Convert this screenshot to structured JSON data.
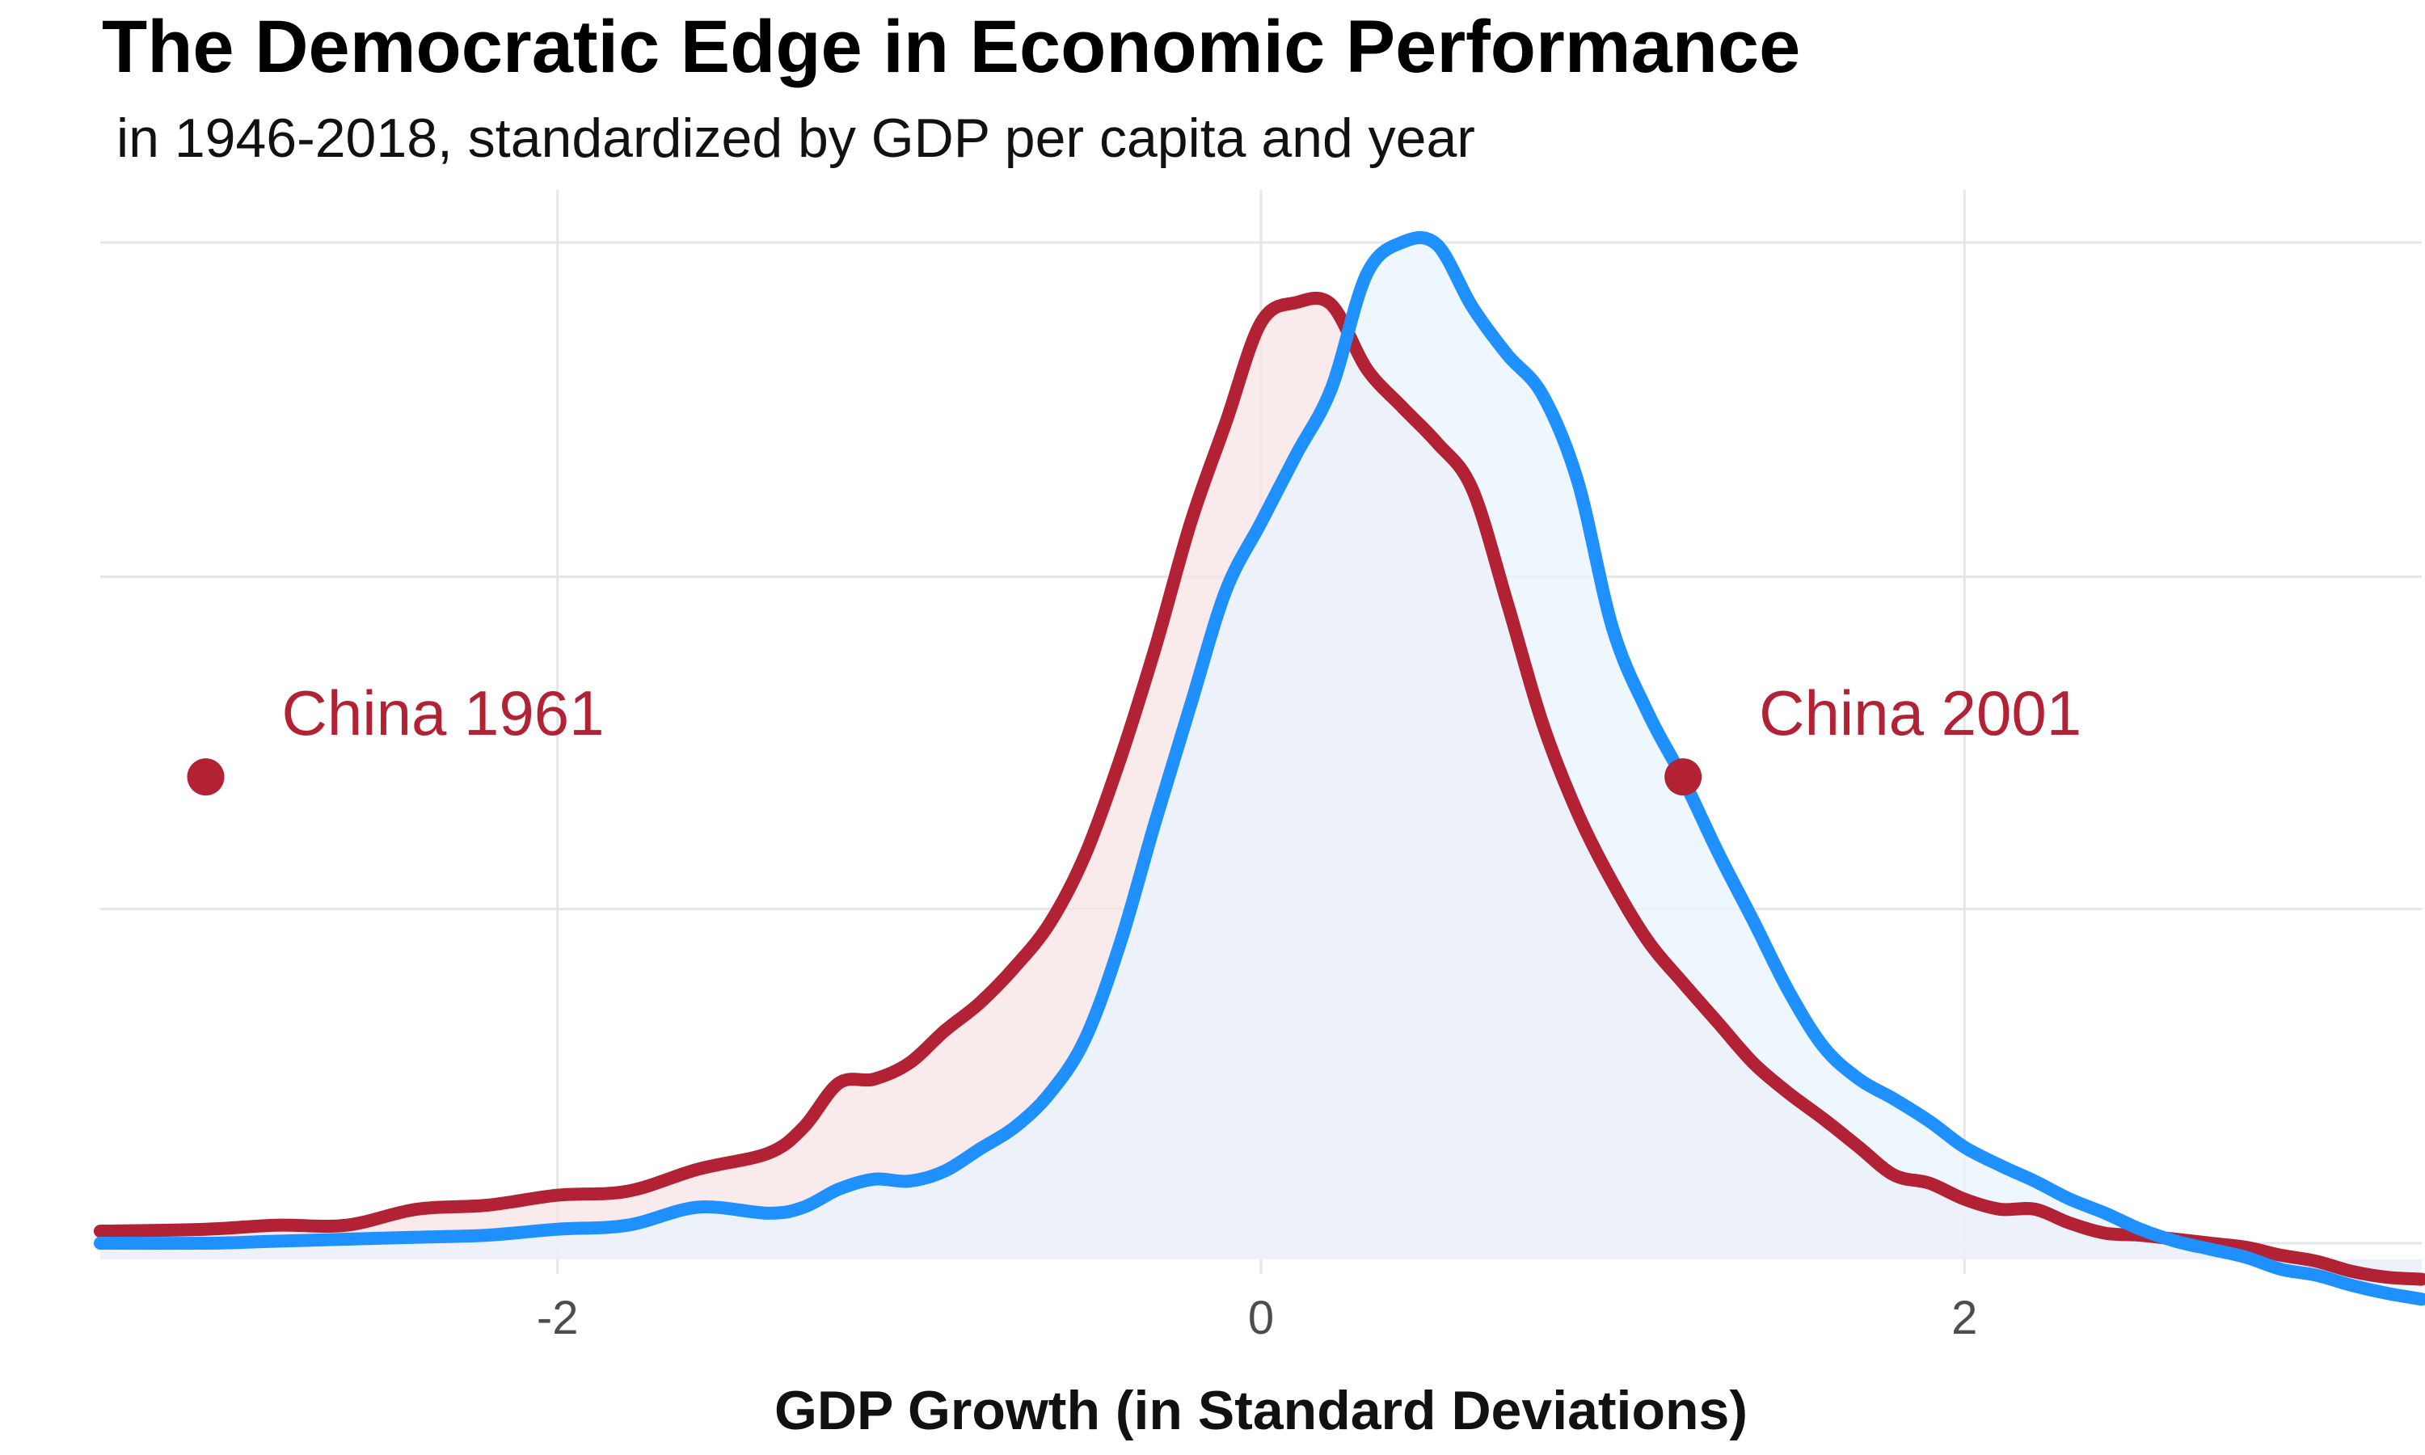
{
  "chart_data": {
    "type": "area",
    "title": "The Democratic Edge in Economic Performance",
    "subtitle": "in 1946-2018, standardized by GDP per capita and year",
    "xlabel": "GDP Growth (in Standard Deviations)",
    "ylabel": "",
    "xlim": [
      -3.3,
      3.3
    ],
    "ylim": [
      0,
      0.5
    ],
    "x_ticks": [
      -2,
      0,
      2
    ],
    "x_tick_labels": [
      "-2",
      "0",
      "2"
    ],
    "y_gridlines": [
      0,
      0.167,
      0.333,
      0.5
    ],
    "grid": true,
    "legend": "none",
    "x": [
      -3.3,
      -3.0,
      -2.8,
      -2.6,
      -2.4,
      -2.2,
      -2.0,
      -1.8,
      -1.6,
      -1.4,
      -1.3,
      -1.2,
      -1.1,
      -1.0,
      -0.9,
      -0.8,
      -0.7,
      -0.6,
      -0.5,
      -0.4,
      -0.3,
      -0.2,
      -0.1,
      0.0,
      0.1,
      0.2,
      0.3,
      0.4,
      0.5,
      0.6,
      0.7,
      0.8,
      0.9,
      1.0,
      1.1,
      1.2,
      1.3,
      1.4,
      1.5,
      1.6,
      1.7,
      1.8,
      1.9,
      2.0,
      2.1,
      2.2,
      2.3,
      2.4,
      2.5,
      2.6,
      2.7,
      2.8,
      2.9,
      3.0,
      3.1,
      3.2,
      3.3
    ],
    "series": [
      {
        "color": "#B22234",
        "fill": "#F7E4E6",
        "values": [
          0.006,
          0.007,
          0.009,
          0.009,
          0.017,
          0.019,
          0.024,
          0.026,
          0.037,
          0.045,
          0.058,
          0.08,
          0.082,
          0.09,
          0.106,
          0.12,
          0.138,
          0.16,
          0.194,
          0.242,
          0.298,
          0.36,
          0.41,
          0.46,
          0.47,
          0.469,
          0.437,
          0.418,
          0.4,
          0.377,
          0.32,
          0.26,
          0.215,
          0.18,
          0.151,
          0.13,
          0.11,
          0.09,
          0.075,
          0.062,
          0.048,
          0.034,
          0.03,
          0.022,
          0.017,
          0.017,
          0.01,
          0.005,
          0.004,
          0.002,
          0.0,
          -0.002,
          -0.006,
          -0.009,
          -0.014,
          -0.017,
          -0.018
        ]
      },
      {
        "color": "#1E90FF",
        "fill": "#E8F3FD",
        "values": [
          0.0,
          0.0,
          0.001,
          0.002,
          0.003,
          0.004,
          0.007,
          0.009,
          0.018,
          0.015,
          0.018,
          0.027,
          0.032,
          0.031,
          0.036,
          0.047,
          0.058,
          0.075,
          0.102,
          0.15,
          0.211,
          0.269,
          0.326,
          0.36,
          0.394,
          0.427,
          0.484,
          0.5,
          0.499,
          0.468,
          0.444,
          0.424,
          0.381,
          0.307,
          0.265,
          0.232,
          0.195,
          0.161,
          0.126,
          0.098,
          0.082,
          0.072,
          0.061,
          0.048,
          0.039,
          0.031,
          0.022,
          0.015,
          0.007,
          0.001,
          -0.003,
          -0.007,
          -0.013,
          -0.016,
          -0.021,
          -0.025,
          -0.028
        ]
      }
    ],
    "annotations": [
      {
        "text": "China 1961",
        "x": -3.0,
        "y": 0.233,
        "color": "#B22234"
      },
      {
        "text": "China 2001",
        "x": 1.2,
        "y": 0.233,
        "color": "#B22234"
      }
    ]
  }
}
